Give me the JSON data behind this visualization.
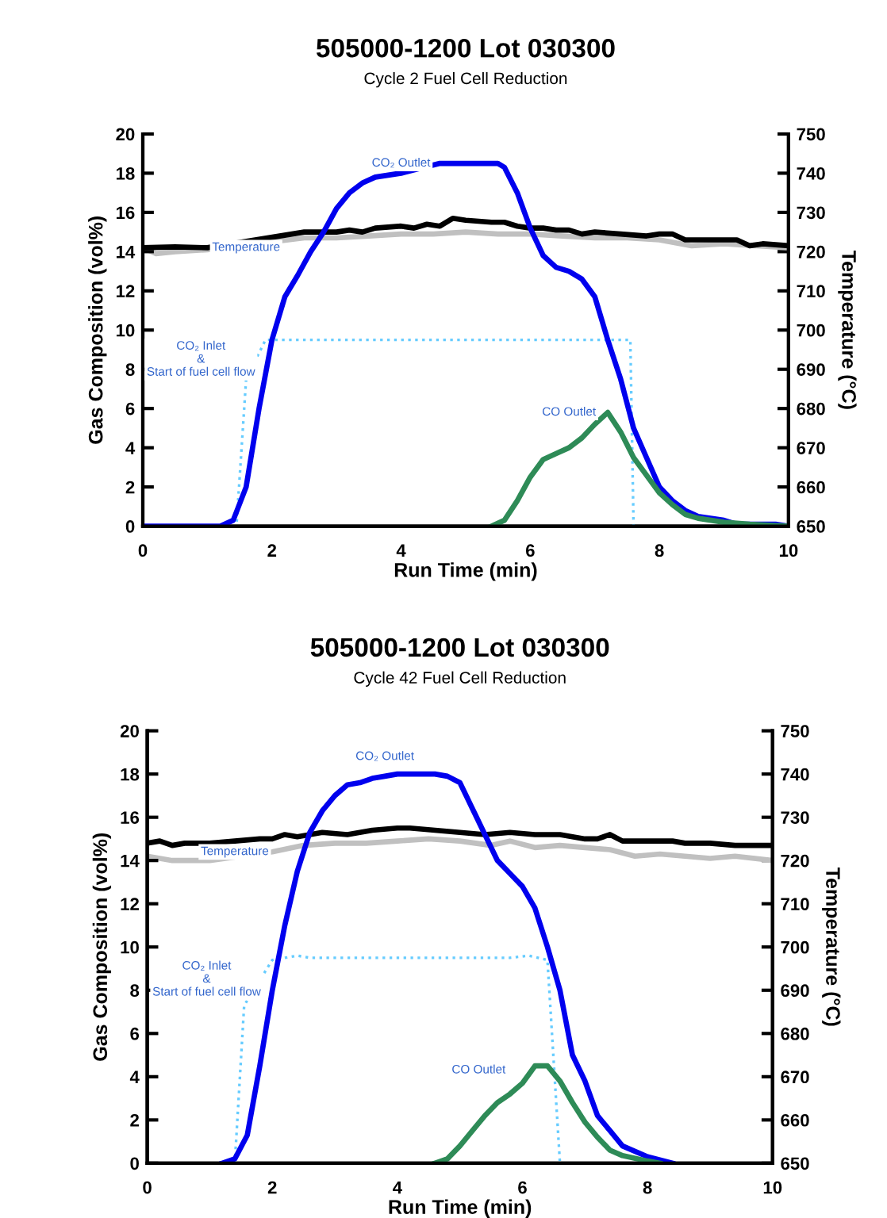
{
  "chart_data": [
    {
      "type": "line",
      "title": "505000-1200 Lot 030300",
      "subtitle": "Cycle 2 Fuel Cell Reduction",
      "xlabel": "Run Time (min)",
      "ylabel": "Gas Composition (vol%)",
      "y2label": "Temperature (°C)",
      "xlim": [
        0,
        10
      ],
      "xticks": [
        0,
        2,
        4,
        6,
        8,
        10
      ],
      "ylim": [
        0,
        20
      ],
      "yticks": [
        0,
        2,
        4,
        6,
        8,
        10,
        12,
        14,
        16,
        18,
        20
      ],
      "y2lim": [
        650,
        750
      ],
      "y2ticks": [
        650,
        660,
        670,
        680,
        690,
        700,
        710,
        720,
        730,
        740,
        750
      ],
      "grid": false,
      "marker": "none",
      "series": [
        {
          "color": "#c0c0c0",
          "axis": "y2",
          "x": [
            0,
            0.2,
            0.5,
            1,
            2.5,
            3,
            3.5,
            4,
            4.5,
            5,
            5.5,
            6,
            6.5,
            7,
            7.5,
            8,
            8.5,
            9,
            9.5,
            10
          ],
          "values": [
            721,
            719.5,
            720,
            720.5,
            723.5,
            723.5,
            724,
            724.5,
            724.5,
            725,
            724.5,
            724.5,
            724,
            723.5,
            723.5,
            723,
            721.5,
            722,
            721.5,
            721
          ]
        },
        {
          "color": "#000000",
          "axis": "y2",
          "x": [
            0,
            0.5,
            1,
            2.5,
            3,
            3.2,
            3.4,
            3.6,
            4,
            4.2,
            4.4,
            4.6,
            4.8,
            5,
            5.4,
            5.6,
            5.8,
            6,
            6.2,
            6.4,
            6.6,
            6.8,
            7,
            7.4,
            7.8,
            8,
            8.2,
            8.4,
            9,
            9.2,
            9.4,
            9.6,
            10
          ],
          "values": [
            721,
            721.2,
            721,
            725,
            725,
            725.5,
            725,
            726,
            726.5,
            726,
            727,
            726.5,
            728.5,
            728,
            727.5,
            727.5,
            726.5,
            726,
            726,
            725.5,
            725.5,
            724.5,
            725,
            724.5,
            724,
            724.5,
            724.5,
            723,
            723,
            723,
            721.5,
            722,
            721.5
          ]
        },
        {
          "color": "#66ccff",
          "line_style": "dotted",
          "x": [
            0,
            1.45,
            1.6,
            1.9,
            7.55,
            7.6,
            10
          ],
          "values": [
            0,
            0,
            7.5,
            9.5,
            9.5,
            0,
            0
          ]
        },
        {
          "color": "#0000ee",
          "x": [
            0,
            1.2,
            1.4,
            1.6,
            1.8,
            2,
            2.2,
            2.4,
            2.6,
            2.8,
            3,
            3.2,
            3.4,
            3.6,
            4,
            4.6,
            5.5,
            5.6,
            5.8,
            6,
            6.2,
            6.4,
            6.6,
            6.8,
            7,
            7.2,
            7.4,
            7.6,
            7.8,
            8,
            8.2,
            8.4,
            8.6,
            9,
            9.2,
            9.8,
            10
          ],
          "values": [
            0,
            0,
            0.3,
            2,
            6,
            9.5,
            11.7,
            12.8,
            14,
            15,
            16.2,
            17,
            17.5,
            17.8,
            18,
            18.5,
            18.5,
            18.3,
            17,
            15.2,
            13.8,
            13.2,
            13,
            12.6,
            11.7,
            9.5,
            7.5,
            5,
            3.5,
            2,
            1.3,
            0.8,
            0.5,
            0.3,
            0.1,
            0.1,
            0
          ]
        },
        {
          "color": "#2e8b57",
          "x": [
            5.4,
            5.6,
            5.8,
            6,
            6.2,
            6.4,
            6.6,
            6.8,
            7,
            7.2,
            7.4,
            7.6,
            7.8,
            8,
            8.2,
            8.4,
            8.6,
            9,
            9.4,
            10
          ],
          "values": [
            0,
            0.3,
            1.3,
            2.5,
            3.4,
            3.7,
            4,
            4.5,
            5.2,
            5.8,
            4.8,
            3.5,
            2.6,
            1.7,
            1.1,
            0.6,
            0.4,
            0.2,
            0.1,
            0
          ]
        }
      ],
      "annotations": [
        "CO₂ Outlet",
        "Temperature",
        "CO₂ Inlet\n&\nStart of fuel cell flow",
        "CO Outlet"
      ]
    },
    {
      "type": "line",
      "title": "505000-1200 Lot 030300",
      "subtitle": "Cycle 42 Fuel Cell Reduction",
      "xlabel": "Run Time (min)",
      "ylabel": "Gas Composition (vol%)",
      "y2label": "Temperature (°C)",
      "xlim": [
        0,
        10
      ],
      "xticks": [
        0,
        2,
        4,
        6,
        8,
        10
      ],
      "ylim": [
        0,
        20
      ],
      "yticks": [
        0,
        2,
        4,
        6,
        8,
        10,
        12,
        14,
        16,
        18,
        20
      ],
      "y2lim": [
        650,
        750
      ],
      "y2ticks": [
        650,
        660,
        670,
        680,
        690,
        700,
        710,
        720,
        730,
        740,
        750
      ],
      "grid": false,
      "marker": "none",
      "series": [
        {
          "color": "#c0c0c0",
          "axis": "y2",
          "x": [
            0,
            0.4,
            1,
            2,
            2.5,
            3,
            3.5,
            4,
            4.5,
            5,
            5.5,
            5.8,
            6.2,
            6.6,
            7,
            7.4,
            7.8,
            8.2,
            8.6,
            9,
            9.4,
            10
          ],
          "values": [
            721,
            720,
            720,
            722,
            723.5,
            724,
            724,
            724.5,
            725,
            724.5,
            723.5,
            724.5,
            723,
            723.5,
            723,
            722.5,
            721,
            721.5,
            721,
            720.5,
            721,
            720
          ]
        },
        {
          "color": "#000000",
          "axis": "y2",
          "x": [
            0,
            0.2,
            0.4,
            0.6,
            1,
            1.8,
            2,
            2.2,
            2.4,
            2.8,
            3.2,
            3.6,
            4,
            4.2,
            4.6,
            5,
            5.4,
            5.8,
            6.2,
            6.6,
            7,
            7.2,
            7.4,
            7.6,
            8,
            8.4,
            8.6,
            9,
            9.4,
            10
          ],
          "values": [
            724,
            724.5,
            723.5,
            724,
            724,
            725,
            725,
            726,
            725.5,
            726.5,
            726,
            727,
            727.5,
            727.5,
            727,
            726.5,
            726,
            726.5,
            726,
            726,
            725,
            725,
            726,
            724.5,
            724.5,
            724.5,
            724,
            724,
            723.5,
            723.5
          ]
        },
        {
          "color": "#66ccff",
          "line_style": "dotted",
          "x": [
            1.4,
            1.55,
            2,
            2.4,
            2.6,
            5.8,
            6.1,
            6.4,
            6.6
          ],
          "values": [
            0,
            7.3,
            9.4,
            9.6,
            9.5,
            9.5,
            9.6,
            9.4,
            0
          ]
        },
        {
          "color": "#0000ee",
          "x": [
            1.2,
            1.4,
            1.6,
            1.8,
            2,
            2.2,
            2.4,
            2.6,
            2.8,
            3,
            3.2,
            3.4,
            3.6,
            3.8,
            4,
            4.6,
            4.8,
            5,
            5.2,
            5.4,
            5.6,
            5.8,
            6,
            6.2,
            6.4,
            6.6,
            6.8,
            7,
            7.2,
            7.4,
            7.6,
            8,
            8.4
          ],
          "values": [
            0,
            0.2,
            1.3,
            4.5,
            8,
            11,
            13.5,
            15.3,
            16.3,
            17,
            17.5,
            17.6,
            17.8,
            17.9,
            18,
            18,
            17.9,
            17.6,
            16.4,
            15.2,
            14,
            13.4,
            12.8,
            11.8,
            10,
            8,
            5,
            3.8,
            2.2,
            1.5,
            0.8,
            0.3,
            0
          ]
        },
        {
          "color": "#2e8b57",
          "x": [
            4.6,
            4.8,
            5,
            5.2,
            5.4,
            5.6,
            5.8,
            6,
            6.2,
            6.4,
            6.6,
            6.8,
            7,
            7.2,
            7.4,
            7.6,
            8,
            8.2
          ],
          "values": [
            0,
            0.2,
            0.8,
            1.5,
            2.2,
            2.8,
            3.2,
            3.7,
            4.5,
            4.5,
            3.8,
            2.8,
            1.9,
            1.2,
            0.6,
            0.35,
            0.1,
            0
          ]
        }
      ],
      "annotations": [
        "CO₂ Outlet",
        "Temperature",
        "CO₂ Inlet\n&\nStart of fuel cell flow",
        "CO Outlet"
      ]
    }
  ]
}
